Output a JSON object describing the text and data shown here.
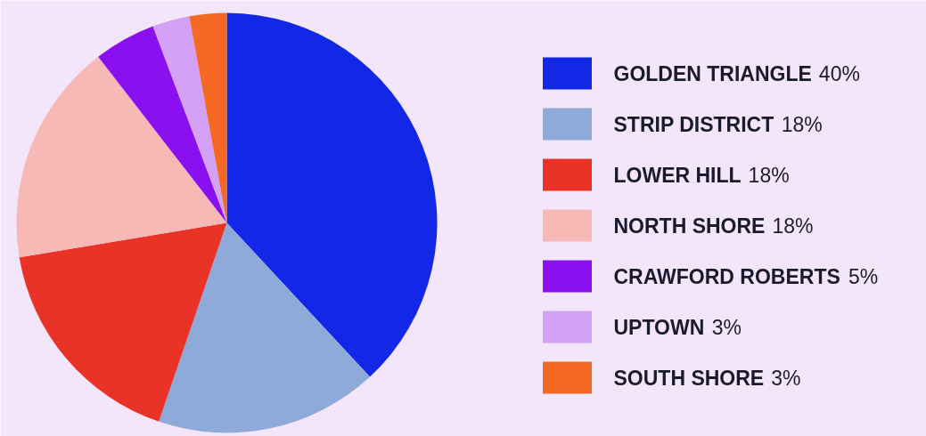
{
  "chart_data": {
    "type": "pie",
    "categories": [
      "GOLDEN TRIANGLE",
      "STRIP DISTRICT",
      "LOWER HILL",
      "NORTH SHORE",
      "CRAWFORD ROBERTS",
      "UPTOWN",
      "SOUTH SHORE"
    ],
    "values": [
      40,
      18,
      18,
      18,
      5,
      3,
      3
    ],
    "value_labels": [
      "40%",
      "18%",
      "18%",
      "18%",
      "5%",
      "3%",
      "3%"
    ],
    "colors": [
      "#1228e6",
      "#8eaad8",
      "#e83326",
      "#f7b9b5",
      "#8a10ef",
      "#d3a2f7",
      "#f46a24"
    ],
    "legend": "right"
  }
}
